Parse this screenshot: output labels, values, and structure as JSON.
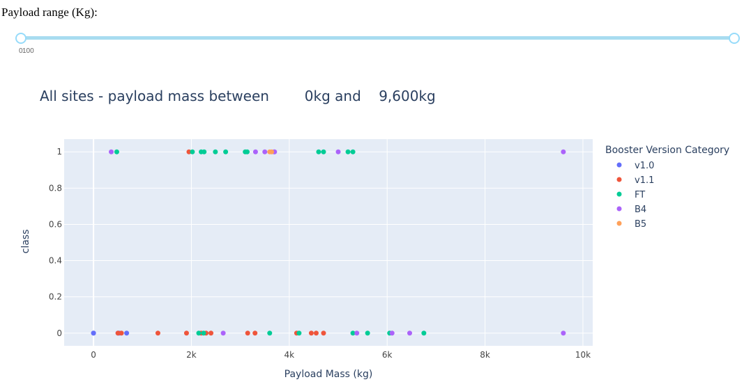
{
  "slider": {
    "label": "Payload range (Kg):",
    "min_value": 0,
    "max_value": 10000,
    "selected_low": 0,
    "selected_high": 10000,
    "tick_labels": [
      "0",
      "100"
    ]
  },
  "colors": {
    "plot_bg": "#e5ecf6",
    "grid": "#ffffff",
    "text": "#2a3f5f",
    "tick_text": "#444444",
    "slider": "#96dbfa"
  },
  "chart_data": {
    "type": "scatter",
    "title": "All sites - payload mass between        0kg and    9,600kg",
    "xlabel": "Payload Mass (kg)",
    "ylabel": "class",
    "xlim": [
      -600,
      10200
    ],
    "ylim": [
      -0.07,
      1.07
    ],
    "x_ticks": [
      0,
      2000,
      4000,
      6000,
      8000,
      10000
    ],
    "x_tick_labels": [
      "0",
      "2k",
      "4k",
      "6k",
      "8k",
      "10k"
    ],
    "y_ticks": [
      0,
      0.2,
      0.4,
      0.6,
      0.8,
      1
    ],
    "y_tick_labels": [
      "0",
      "0.2",
      "0.4",
      "0.6",
      "0.8",
      "1"
    ],
    "grid": true,
    "legend_title": "Booster Version Category",
    "legend_position": "right",
    "series": [
      {
        "name": "v1.0",
        "color": "#636efa",
        "points": [
          [
            0,
            0
          ],
          [
            0,
            0
          ],
          [
            525,
            0
          ],
          [
            500,
            0
          ],
          [
            677,
            0
          ]
        ]
      },
      {
        "name": "v1.1",
        "color": "#ef553b",
        "points": [
          [
            500,
            0
          ],
          [
            570,
            0
          ],
          [
            1316,
            0
          ],
          [
            1900,
            0
          ],
          [
            2200,
            0
          ],
          [
            2300,
            0
          ],
          [
            2400,
            0
          ],
          [
            3150,
            0
          ],
          [
            3300,
            0
          ],
          [
            4150,
            0
          ],
          [
            4450,
            0
          ],
          [
            4550,
            0
          ],
          [
            4700,
            0
          ],
          [
            1950,
            1
          ]
        ]
      },
      {
        "name": "FT",
        "color": "#00cc96",
        "points": [
          [
            475,
            1
          ],
          [
            2020,
            1
          ],
          [
            2200,
            1
          ],
          [
            2260,
            1
          ],
          [
            2490,
            1
          ],
          [
            2700,
            1
          ],
          [
            3100,
            1
          ],
          [
            3140,
            1
          ],
          [
            4600,
            1
          ],
          [
            4700,
            1
          ],
          [
            5200,
            1
          ],
          [
            5300,
            1
          ],
          [
            2150,
            0
          ],
          [
            2250,
            0
          ],
          [
            3600,
            0
          ],
          [
            4200,
            0
          ],
          [
            5300,
            0
          ],
          [
            5600,
            0
          ],
          [
            6050,
            0
          ],
          [
            6750,
            0
          ]
        ]
      },
      {
        "name": "B4",
        "color": "#ab63fa",
        "points": [
          [
            362,
            1
          ],
          [
            3310,
            1
          ],
          [
            3500,
            1
          ],
          [
            3690,
            1
          ],
          [
            3700,
            1
          ],
          [
            5000,
            1
          ],
          [
            9600,
            1
          ],
          [
            2650,
            0
          ],
          [
            5380,
            0
          ],
          [
            6100,
            0
          ],
          [
            6460,
            0
          ],
          [
            9600,
            0
          ]
        ]
      },
      {
        "name": "B5",
        "color": "#ffa15a",
        "points": [
          [
            3600,
            1
          ],
          [
            3640,
            1
          ]
        ]
      }
    ]
  }
}
